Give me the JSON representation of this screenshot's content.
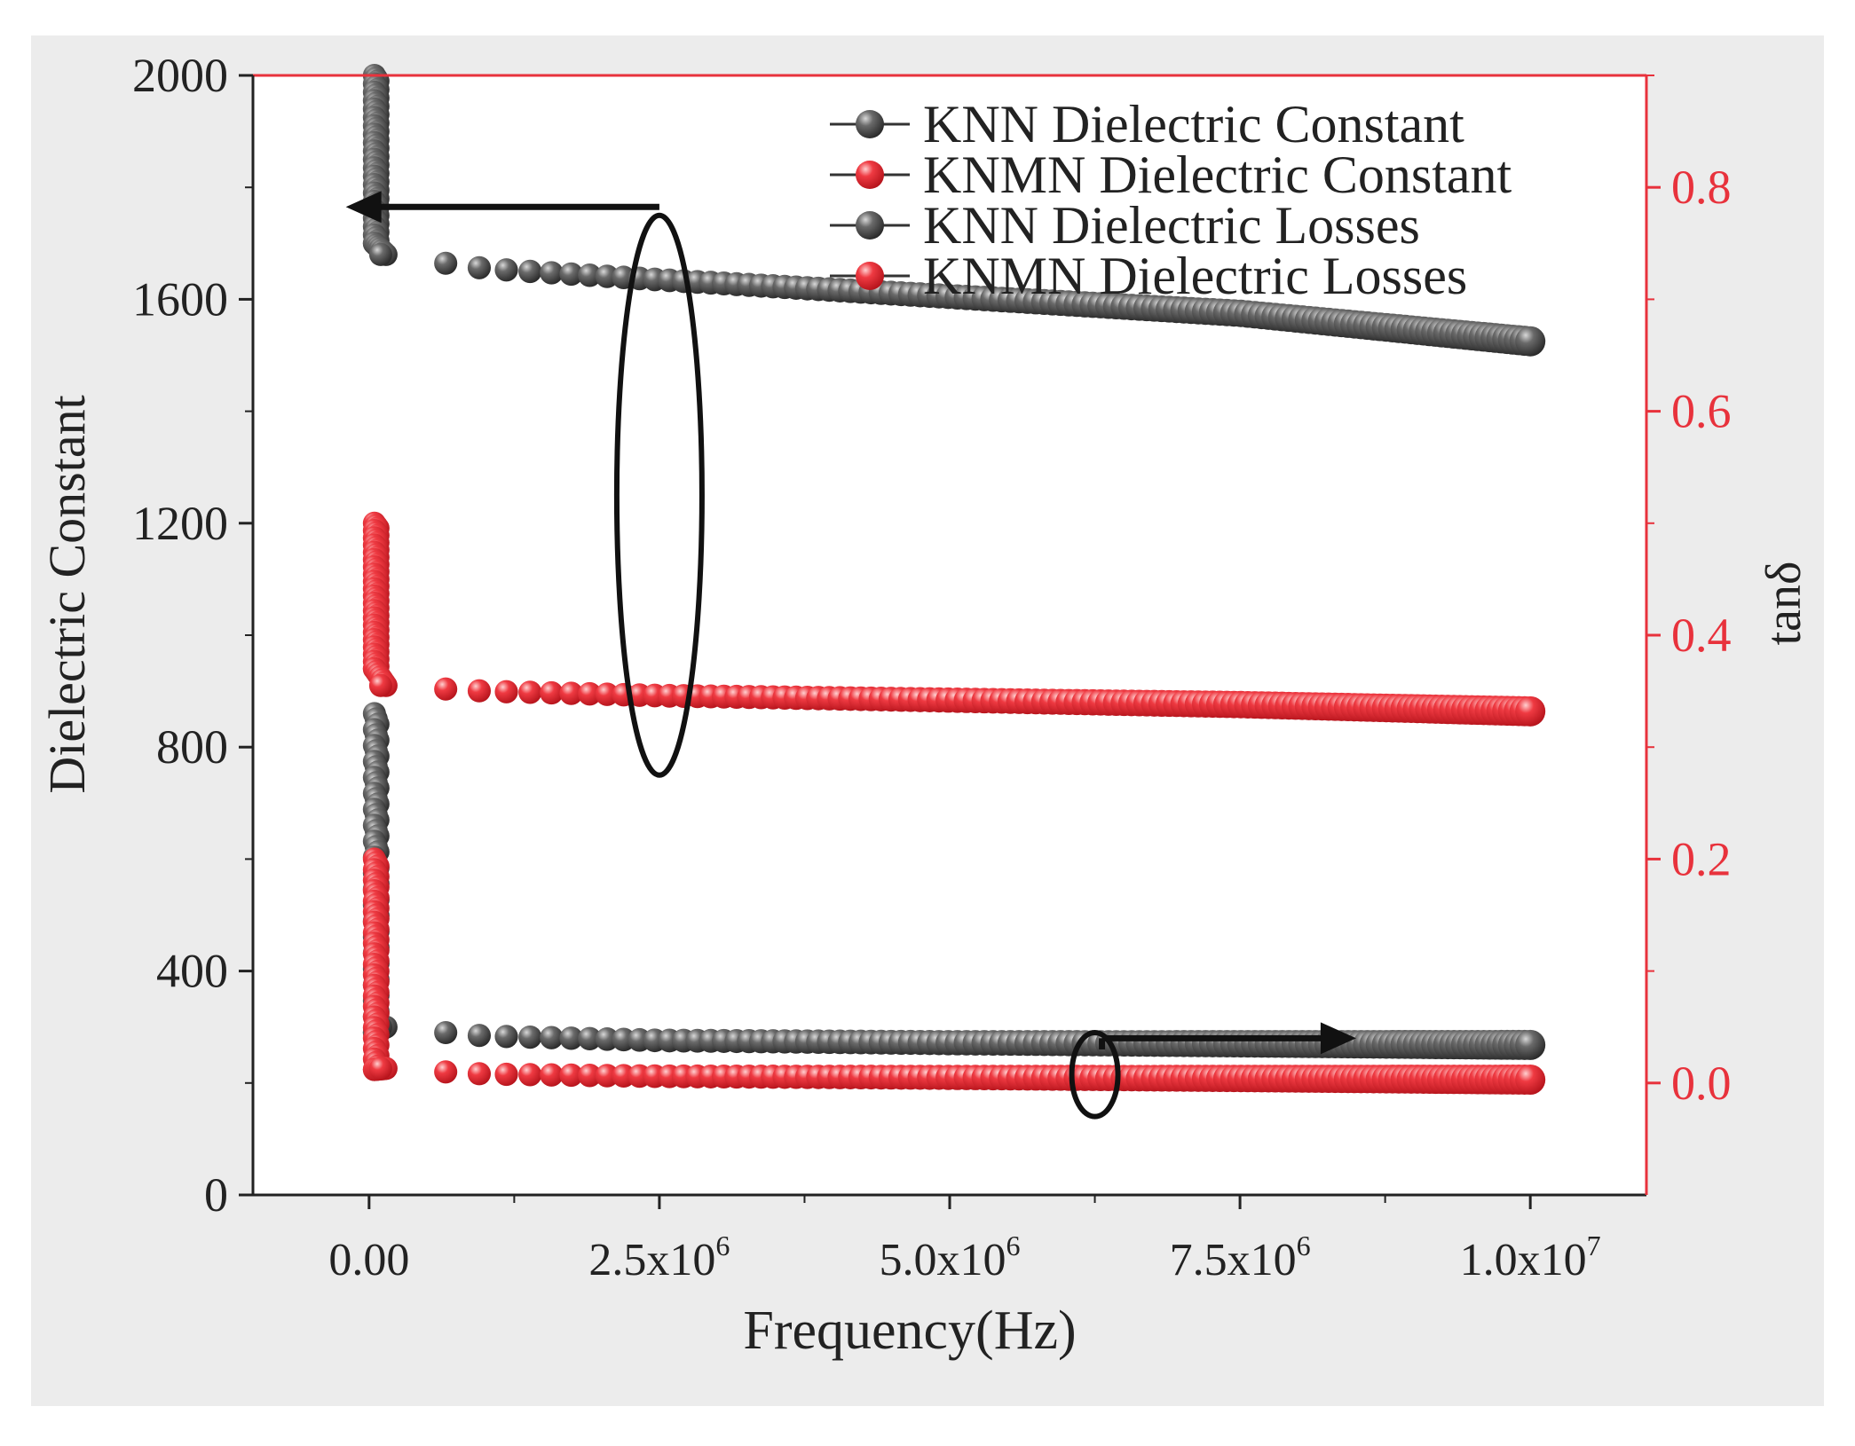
{
  "chart_data": {
    "type": "scatter",
    "title": "",
    "xlabel": "Frequency(Hz)",
    "ylabel": "Dielectric Constant",
    "y2label": "tanδ",
    "xlim": [
      -1000000,
      11000000
    ],
    "ylim": [
      0,
      2000
    ],
    "y2lim": [
      -0.1,
      0.9
    ],
    "x_ticks": [
      {
        "value": 0,
        "mant": "0.00",
        "exp": ""
      },
      {
        "value": 2500000,
        "mant": "2.5x10",
        "exp": "6"
      },
      {
        "value": 5000000,
        "mant": "5.0x10",
        "exp": "6"
      },
      {
        "value": 7500000,
        "mant": "7.5x10",
        "exp": "6"
      },
      {
        "value": 10000000,
        "mant": "1.0x10",
        "exp": "7"
      }
    ],
    "y_ticks": [
      "0",
      "400",
      "800",
      "1200",
      "1600",
      "2000"
    ],
    "y2_ticks": [
      "0.0",
      "0.2",
      "0.4",
      "0.6",
      "0.8"
    ],
    "legend_position": "top-right",
    "series": [
      {
        "name": "KNN Dielectric Constant",
        "color": "#4a4a4a",
        "axis": "left",
        "spike": [
          2000,
          1700
        ],
        "points": [
          [
            100000,
            1680
          ],
          [
            1000000,
            1655
          ],
          [
            2500000,
            1635
          ],
          [
            5000000,
            1605
          ],
          [
            7500000,
            1575
          ],
          [
            10000000,
            1525
          ]
        ]
      },
      {
        "name": "KNMN Dielectric Constant",
        "color": "#e8323c",
        "axis": "right",
        "spike": [
          0.5,
          0.37
        ],
        "points": [
          [
            100000,
            0.355
          ],
          [
            1000000,
            0.35
          ],
          [
            2500000,
            0.346
          ],
          [
            5000000,
            0.342
          ],
          [
            7500000,
            0.338
          ],
          [
            10000000,
            0.332
          ]
        ]
      },
      {
        "name": "KNN Dielectric Losses",
        "color": "#4a4a4a",
        "axis": "right",
        "spike": [
          0.33,
          0.045
        ],
        "points": [
          [
            100000,
            0.05
          ],
          [
            1000000,
            0.042
          ],
          [
            2500000,
            0.038
          ],
          [
            5000000,
            0.036
          ],
          [
            7500000,
            0.035
          ],
          [
            10000000,
            0.034
          ]
        ]
      },
      {
        "name": "KNMN Dielectric Losses",
        "color": "#e8323c",
        "axis": "right",
        "spike": [
          0.2,
          0.012
        ],
        "points": [
          [
            100000,
            0.013
          ],
          [
            1000000,
            0.008
          ],
          [
            2500000,
            0.006
          ],
          [
            5000000,
            0.005
          ],
          [
            7500000,
            0.004
          ],
          [
            10000000,
            0.003
          ]
        ]
      }
    ],
    "annotations": [
      {
        "type": "ellipse-arrow",
        "target": "left-axis",
        "anchor_x": 2500000,
        "y_range": [
          750,
          1750
        ],
        "arrow_to_x": -200000,
        "arrow_y": 1765
      },
      {
        "type": "ellipse-arrow",
        "target": "right-axis",
        "anchor_x": 6250000,
        "y_range": [
          140,
          290
        ],
        "arrow_to_x": 8500000,
        "arrow_y": 280
      }
    ]
  }
}
